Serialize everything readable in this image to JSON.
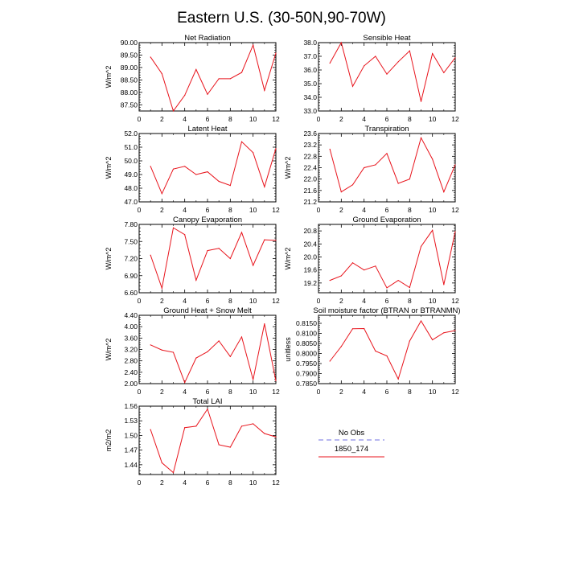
{
  "title": "Eastern U.S. (30-50N,90-70W)",
  "colors": {
    "model_line": "#e8141c",
    "obs_line": "#8c8ce6",
    "axis": "#000000"
  },
  "legend": {
    "entries": [
      {
        "label": "No Obs",
        "style": "dashed",
        "color": "#8c8ce6"
      },
      {
        "label": "1850_174",
        "style": "solid",
        "color": "#e8141c"
      }
    ]
  },
  "chart_data": [
    {
      "type": "line",
      "title": "Net Radiation",
      "ylabel": "W/m^2",
      "xlabel": "",
      "x": [
        1,
        2,
        3,
        4,
        5,
        6,
        7,
        8,
        9,
        10,
        11,
        12
      ],
      "xlim": [
        0,
        12
      ],
      "xticks": [
        "0",
        "2",
        "4",
        "6",
        "8",
        "10",
        "12"
      ],
      "ylim": [
        87.25,
        90.0
      ],
      "yticks": [
        "87.50",
        "88.00",
        "88.50",
        "89.00",
        "89.50",
        "90.00"
      ],
      "series": [
        {
          "name": "1850_174",
          "values": [
            89.42,
            88.75,
            87.25,
            87.88,
            88.92,
            87.92,
            88.55,
            88.55,
            88.8,
            89.9,
            88.08,
            89.58
          ]
        }
      ]
    },
    {
      "type": "line",
      "title": "Sensible Heat",
      "ylabel": "",
      "xlabel": "",
      "x": [
        1,
        2,
        3,
        4,
        5,
        6,
        7,
        8,
        9,
        10,
        11,
        12
      ],
      "xlim": [
        0,
        12
      ],
      "xticks": [
        "0",
        "2",
        "4",
        "6",
        "8",
        "10",
        "12"
      ],
      "ylim": [
        33.0,
        38.0
      ],
      "yticks": [
        "33.0",
        "34.0",
        "35.0",
        "36.0",
        "37.0",
        "38.0"
      ],
      "series": [
        {
          "name": "1850_174",
          "values": [
            36.5,
            38.0,
            34.8,
            36.3,
            37.0,
            35.7,
            36.6,
            37.4,
            33.7,
            37.2,
            35.8,
            36.9
          ]
        }
      ]
    },
    {
      "type": "line",
      "title": "Latent Heat",
      "ylabel": "W/m^2",
      "xlabel": "",
      "x": [
        1,
        2,
        3,
        4,
        5,
        6,
        7,
        8,
        9,
        10,
        11,
        12
      ],
      "xlim": [
        0,
        12
      ],
      "xticks": [
        "0",
        "2",
        "4",
        "6",
        "8",
        "10",
        "12"
      ],
      "ylim": [
        47.0,
        52.0
      ],
      "yticks": [
        "47.0",
        "48.0",
        "49.0",
        "50.0",
        "51.0",
        "52.0"
      ],
      "series": [
        {
          "name": "1850_174",
          "values": [
            49.6,
            47.6,
            49.4,
            49.6,
            49.0,
            49.2,
            48.5,
            48.2,
            51.4,
            50.6,
            48.1,
            50.9
          ]
        }
      ]
    },
    {
      "type": "line",
      "title": "Transpiration",
      "ylabel": "W/m^2",
      "xlabel": "",
      "x": [
        1,
        2,
        3,
        4,
        5,
        6,
        7,
        8,
        9,
        10,
        11,
        12
      ],
      "xlim": [
        0,
        12
      ],
      "xticks": [
        "0",
        "2",
        "4",
        "6",
        "8",
        "10",
        "12"
      ],
      "ylim": [
        21.2,
        23.6
      ],
      "yticks": [
        "21.2",
        "21.6",
        "22.0",
        "22.4",
        "22.8",
        "23.2",
        "23.6"
      ],
      "series": [
        {
          "name": "1850_174",
          "values": [
            23.05,
            21.55,
            21.8,
            22.4,
            22.5,
            22.9,
            21.85,
            22.0,
            23.45,
            22.7,
            21.55,
            22.5
          ]
        }
      ]
    },
    {
      "type": "line",
      "title": "Canopy Evaporation",
      "ylabel": "W/m^2",
      "xlabel": "",
      "x": [
        1,
        2,
        3,
        4,
        5,
        6,
        7,
        8,
        9,
        10,
        11,
        12
      ],
      "xlim": [
        0,
        12
      ],
      "xticks": [
        "0",
        "2",
        "4",
        "6",
        "8",
        "10",
        "12"
      ],
      "ylim": [
        6.6,
        7.8
      ],
      "yticks": [
        "6.60",
        "6.90",
        "7.20",
        "7.50",
        "7.80"
      ],
      "series": [
        {
          "name": "1850_174",
          "values": [
            7.26,
            6.68,
            7.74,
            7.62,
            6.82,
            7.34,
            7.38,
            7.2,
            7.66,
            7.08,
            7.53,
            7.52
          ]
        }
      ]
    },
    {
      "type": "line",
      "title": "Ground Evaporation",
      "ylabel": "W/m^2",
      "xlabel": "",
      "x": [
        1,
        2,
        3,
        4,
        5,
        6,
        7,
        8,
        9,
        10,
        11,
        12
      ],
      "xlim": [
        0,
        12
      ],
      "xticks": [
        "0",
        "2",
        "4",
        "6",
        "8",
        "10",
        "12"
      ],
      "ylim": [
        18.9,
        21.0
      ],
      "yticks": [
        "19.2",
        "19.6",
        "20.0",
        "20.4",
        "20.8"
      ],
      "series": [
        {
          "name": "1850_174",
          "values": [
            19.28,
            19.42,
            19.82,
            19.6,
            19.72,
            19.05,
            19.28,
            19.06,
            20.32,
            20.82,
            19.15,
            20.78
          ]
        }
      ]
    },
    {
      "type": "line",
      "title": "Ground Heat + Snow Melt",
      "ylabel": "W/m^2",
      "xlabel": "",
      "x": [
        1,
        2,
        3,
        4,
        5,
        6,
        7,
        8,
        9,
        10,
        11,
        12
      ],
      "xlim": [
        0,
        12
      ],
      "xticks": [
        "0",
        "2",
        "4",
        "6",
        "8",
        "10",
        "12"
      ],
      "ylim": [
        2.0,
        4.4
      ],
      "yticks": [
        "2.00",
        "2.40",
        "2.80",
        "3.20",
        "3.60",
        "4.00",
        "4.40"
      ],
      "series": [
        {
          "name": "1850_174",
          "values": [
            3.36,
            3.18,
            3.1,
            2.04,
            2.9,
            3.12,
            3.5,
            2.95,
            3.64,
            2.14,
            4.1,
            2.1
          ]
        }
      ]
    },
    {
      "type": "line",
      "title": "Soil moisture factor (BTRAN or BTRANMN)",
      "ylabel": "unitless",
      "xlabel": "",
      "x": [
        1,
        2,
        3,
        4,
        5,
        6,
        7,
        8,
        9,
        10,
        11,
        12
      ],
      "xlim": [
        0,
        12
      ],
      "xticks": [
        "0",
        "2",
        "4",
        "6",
        "8",
        "10",
        "12"
      ],
      "ylim": [
        0.785,
        0.819
      ],
      "yticks": [
        "0.7850",
        "0.7900",
        "0.7950",
        "0.8000",
        "0.8050",
        "0.8100",
        "0.8150"
      ],
      "series": [
        {
          "name": "1850_174",
          "values": [
            0.7962,
            0.8035,
            0.8123,
            0.8124,
            0.8012,
            0.7988,
            0.7873,
            0.8062,
            0.8162,
            0.8068,
            0.8103,
            0.8114
          ]
        }
      ]
    },
    {
      "type": "line",
      "title": "Total LAI",
      "ylabel": "m2/m2",
      "xlabel": "",
      "x": [
        1,
        2,
        3,
        4,
        5,
        6,
        7,
        8,
        9,
        10,
        11,
        12
      ],
      "xlim": [
        0,
        12
      ],
      "xticks": [
        "0",
        "2",
        "4",
        "6",
        "8",
        "10",
        "12"
      ],
      "ylim": [
        1.42,
        1.56
      ],
      "yticks": [
        "1.44",
        "1.47",
        "1.50",
        "1.53",
        "1.56"
      ],
      "series": [
        {
          "name": "1850_174",
          "values": [
            1.512,
            1.444,
            1.424,
            1.516,
            1.519,
            1.554,
            1.481,
            1.476,
            1.519,
            1.524,
            1.504,
            1.497
          ]
        }
      ]
    }
  ]
}
